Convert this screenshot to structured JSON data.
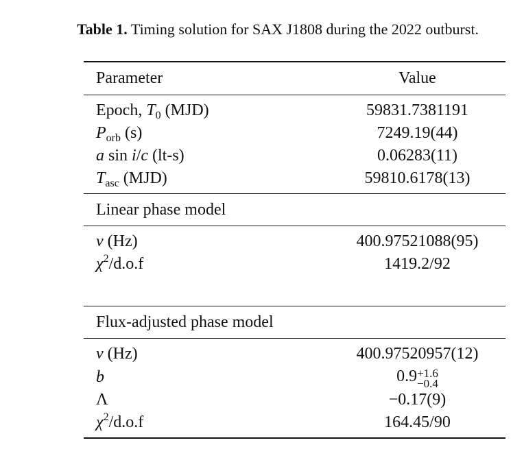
{
  "caption": {
    "label": "Table 1.",
    "text": "Timing solution for SAX J1808 during the 2022 outburst."
  },
  "header": [
    "Parameter",
    "Value"
  ],
  "sections": [
    {
      "rows": [
        {
          "param": [
            {
              "t": "Epoch, "
            },
            {
              "t": "T",
              "f": "i"
            },
            {
              "t": "0",
              "f": "sub"
            },
            {
              "t": " (MJD)"
            }
          ],
          "value": [
            {
              "t": "59831.7381191"
            }
          ]
        },
        {
          "param": [
            {
              "t": "P",
              "f": "i"
            },
            {
              "t": "orb",
              "f": "sub"
            },
            {
              "t": " (s)"
            }
          ],
          "value": [
            {
              "t": "7249.19(44)"
            }
          ]
        },
        {
          "param": [
            {
              "t": "a",
              "f": "i"
            },
            {
              "t": " sin "
            },
            {
              "t": "i",
              "f": "i"
            },
            {
              "t": "/"
            },
            {
              "t": "c",
              "f": "i"
            },
            {
              "t": " (lt-s)"
            }
          ],
          "value": [
            {
              "t": "0.06283(11)"
            }
          ]
        },
        {
          "param": [
            {
              "t": "T",
              "f": "i"
            },
            {
              "t": "asc",
              "f": "sub"
            },
            {
              "t": " (MJD)"
            }
          ],
          "value": [
            {
              "t": "59810.6178(13)"
            }
          ]
        }
      ]
    },
    {
      "title": "Linear phase model",
      "rows": [
        {
          "param": [
            {
              "t": "ν",
              "f": "i"
            },
            {
              "t": " (Hz)"
            }
          ],
          "value": [
            {
              "t": "400.97521088(95)"
            }
          ]
        },
        {
          "param": [
            {
              "t": "χ",
              "f": "i"
            },
            {
              "t": "2",
              "f": "sup"
            },
            {
              "t": "/d.o.f"
            }
          ],
          "value": [
            {
              "t": "1419.2/92"
            }
          ]
        }
      ]
    },
    {
      "title": "Flux-adjusted phase model",
      "rows": [
        {
          "param": [
            {
              "t": "ν",
              "f": "i"
            },
            {
              "t": " (Hz)"
            }
          ],
          "value": [
            {
              "t": "400.97520957(12)"
            }
          ]
        },
        {
          "param": [
            {
              "t": "b",
              "f": "i"
            }
          ],
          "value": [
            {
              "t": "0.9"
            },
            {
              "sup": "+1.6",
              "sub": "−0.4"
            }
          ]
        },
        {
          "param": [
            {
              "t": "Λ"
            }
          ],
          "value": [
            {
              "t": "−0.17(9)"
            }
          ]
        },
        {
          "param": [
            {
              "t": "χ",
              "f": "i"
            },
            {
              "t": "2",
              "f": "sup"
            },
            {
              "t": "/d.o.f"
            }
          ],
          "value": [
            {
              "t": "164.45/90"
            }
          ]
        }
      ]
    }
  ]
}
